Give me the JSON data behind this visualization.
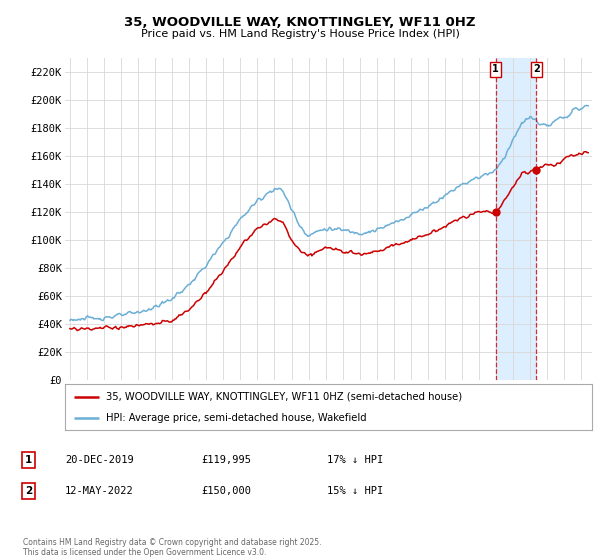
{
  "title": "35, WOODVILLE WAY, KNOTTINGLEY, WF11 0HZ",
  "subtitle": "Price paid vs. HM Land Registry's House Price Index (HPI)",
  "ylabel_ticks": [
    "£0",
    "£20K",
    "£40K",
    "£60K",
    "£80K",
    "£100K",
    "£120K",
    "£140K",
    "£160K",
    "£180K",
    "£200K",
    "£220K"
  ],
  "ytick_vals": [
    0,
    20000,
    40000,
    60000,
    80000,
    100000,
    120000,
    140000,
    160000,
    180000,
    200000,
    220000
  ],
  "ylim": [
    0,
    230000
  ],
  "hpi_color": "#6baed6",
  "price_color": "#cc0000",
  "marker1_year": 2019.97,
  "marker1_price": 119995,
  "marker2_year": 2022.36,
  "marker2_price": 150000,
  "shade_color": "#ddeeff",
  "legend_line1": "35, WOODVILLE WAY, KNOTTINGLEY, WF11 0HZ (semi-detached house)",
  "legend_line2": "HPI: Average price, semi-detached house, Wakefield",
  "table_row1": [
    "1",
    "20-DEC-2019",
    "£119,995",
    "17% ↓ HPI"
  ],
  "table_row2": [
    "2",
    "12-MAY-2022",
    "£150,000",
    "15% ↓ HPI"
  ],
  "footnote": "Contains HM Land Registry data © Crown copyright and database right 2025.\nThis data is licensed under the Open Government Licence v3.0.",
  "background_color": "#ffffff",
  "grid_color": "#d8d8d8",
  "hpi_nodes_x": [
    1995,
    1996,
    1997,
    1998,
    1999,
    2000,
    2001,
    2002,
    2003,
    2004,
    2005,
    2006,
    2007,
    2007.5,
    2008,
    2008.5,
    2009,
    2009.5,
    2010,
    2011,
    2012,
    2013,
    2014,
    2015,
    2016,
    2017,
    2018,
    2019,
    2020,
    2020.5,
    2021,
    2021.5,
    2022,
    2022.5,
    2023,
    2023.5,
    2024,
    2024.5,
    2025.3
  ],
  "hpi_nodes_y": [
    43000,
    43500,
    44500,
    46000,
    48000,
    52000,
    58000,
    68000,
    82000,
    98000,
    115000,
    128000,
    137000,
    135000,
    122000,
    110000,
    103000,
    106000,
    108000,
    107000,
    105000,
    107000,
    112000,
    118000,
    124000,
    132000,
    140000,
    145000,
    150000,
    160000,
    172000,
    183000,
    188000,
    184000,
    181000,
    185000,
    188000,
    192000,
    196000
  ],
  "price_nodes_x": [
    1995,
    1996,
    1997,
    1998,
    1999,
    2000,
    2001,
    2002,
    2003,
    2004,
    2005,
    2006,
    2007,
    2007.5,
    2008,
    2008.5,
    2009,
    2009.5,
    2010,
    2011,
    2012,
    2013,
    2014,
    2015,
    2016,
    2017,
    2018,
    2019,
    2019.97,
    2020.5,
    2021,
    2021.5,
    2022.36,
    2023,
    2023.5,
    2024,
    2024.5,
    2025.3
  ],
  "price_nodes_y": [
    36000,
    36500,
    37000,
    37500,
    38500,
    40000,
    42000,
    50000,
    63000,
    78000,
    95000,
    108000,
    115000,
    112000,
    100000,
    92000,
    88000,
    92000,
    94000,
    93000,
    90000,
    92000,
    96000,
    100000,
    104000,
    110000,
    116000,
    120000,
    119995,
    128000,
    138000,
    148000,
    150000,
    155000,
    153000,
    158000,
    161000,
    163000
  ]
}
